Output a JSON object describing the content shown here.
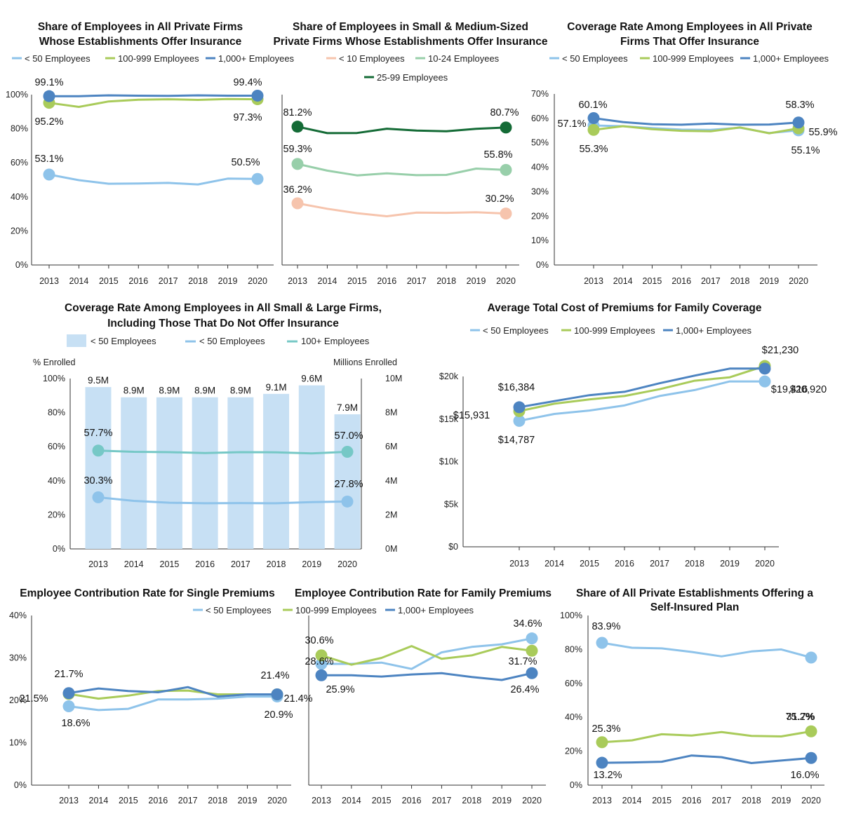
{
  "colors": {
    "lt_blue": "#8ec3ea",
    "green": "#a9cb5a",
    "dk_blue": "#4d84c1",
    "peach": "#f6c4ad",
    "mint": "#98cfaa",
    "dk_green": "#146b36",
    "bar_fill": "#c7e0f4",
    "teal": "#76c8c6",
    "axis": "#333333"
  },
  "chart_data": [
    {
      "id": "p1",
      "type": "line",
      "title": [
        "Share of Employees in All Private Firms",
        "Whose Establishments Offer Insurance"
      ],
      "x": [
        "2013",
        "2014",
        "2015",
        "2016",
        "2017",
        "2018",
        "2019",
        "2020"
      ],
      "ylim": [
        0,
        100
      ],
      "yticks": [
        "0%",
        "20%",
        "40%",
        "60%",
        "80%",
        "100%"
      ],
      "series": [
        {
          "name": "< 50 Employees",
          "color": "lt_blue",
          "values": [
            53.1,
            49.8,
            47.7,
            47.8,
            48.2,
            47.3,
            50.7,
            50.5
          ]
        },
        {
          "name": "100-999 Employees",
          "color": "green",
          "values": [
            95.2,
            92.8,
            96.0,
            97.0,
            97.3,
            96.9,
            97.4,
            97.3
          ]
        },
        {
          "name": "1,000+ Employees",
          "color": "dk_blue",
          "values": [
            99.1,
            99.1,
            99.6,
            99.4,
            99.3,
            99.6,
            99.4,
            99.4
          ]
        }
      ],
      "labels": [
        {
          "text": "99.1%"
        },
        {
          "text": "95.2%"
        },
        {
          "text": "53.1%"
        },
        {
          "text": "99.4%"
        },
        {
          "text": "97.3%"
        },
        {
          "text": "50.5%"
        }
      ]
    },
    {
      "id": "p2",
      "type": "line",
      "title": [
        "Share of Employees in Small & Medium-Sized",
        "Private Firms Whose Establishments Offer Insurance"
      ],
      "x": [
        "2013",
        "2014",
        "2015",
        "2016",
        "2017",
        "2018",
        "2019",
        "2020"
      ],
      "ylim": [
        0,
        100
      ],
      "series": [
        {
          "name": "< 10 Employees",
          "color": "peach",
          "values": [
            36.2,
            33.0,
            30.4,
            28.6,
            30.8,
            30.6,
            31.0,
            30.2
          ]
        },
        {
          "name": "10-24 Employees",
          "color": "mint",
          "values": [
            59.3,
            55.4,
            52.6,
            53.8,
            52.7,
            52.9,
            56.6,
            55.8
          ]
        },
        {
          "name": "25-99 Employees",
          "color": "dk_green",
          "values": [
            81.2,
            77.4,
            77.5,
            80.0,
            78.9,
            78.5,
            79.9,
            80.7
          ]
        }
      ],
      "labels": [
        {
          "text": "81.2%"
        },
        {
          "text": "59.3%"
        },
        {
          "text": "36.2%"
        },
        {
          "text": "80.7%"
        },
        {
          "text": "55.8%"
        },
        {
          "text": "30.2%"
        }
      ]
    },
    {
      "id": "p3",
      "type": "line",
      "title": [
        "Coverage Rate Among Employees in All Private",
        "Firms That Offer Insurance"
      ],
      "x": [
        "2013",
        "2014",
        "2015",
        "2016",
        "2017",
        "2018",
        "2019",
        "2020"
      ],
      "ylim": [
        0,
        70
      ],
      "yticks": [
        "0%",
        "10%",
        "20%",
        "30%",
        "40%",
        "50%",
        "60%",
        "70%"
      ],
      "series": [
        {
          "name": "< 50 Employees",
          "color": "lt_blue",
          "values": [
            57.1,
            56.8,
            56.0,
            55.4,
            55.3,
            56.2,
            54.0,
            55.1
          ]
        },
        {
          "name": "100-999 Employees",
          "color": "green",
          "values": [
            55.3,
            56.8,
            55.6,
            54.9,
            54.7,
            56.3,
            53.9,
            55.9
          ]
        },
        {
          "name": "1,000+ Employees",
          "color": "dk_blue",
          "values": [
            60.1,
            58.5,
            57.6,
            57.4,
            57.9,
            57.4,
            57.5,
            58.3
          ]
        }
      ],
      "labels": [
        {
          "text": "60.1%"
        },
        {
          "text": "57.1%"
        },
        {
          "text": "55.3%"
        },
        {
          "text": "58.3%"
        },
        {
          "text": "55.9%"
        },
        {
          "text": "55.1%"
        }
      ]
    },
    {
      "id": "p4",
      "type": "bar",
      "title": [
        "Coverage Rate Among Employees in All Small & Large Firms,",
        "Including Those That Do Not Offer Insurance"
      ],
      "ylabel_left": "% Enrolled",
      "ylabel_right": "Millions Enrolled",
      "x": [
        "2013",
        "2014",
        "2015",
        "2016",
        "2017",
        "2018",
        "2019",
        "2020"
      ],
      "ylim": [
        0,
        100
      ],
      "ylim_right": [
        0,
        10
      ],
      "yticks": [
        "0%",
        "20%",
        "40%",
        "60%",
        "80%",
        "100%"
      ],
      "yticks_right": [
        "0M",
        "2M",
        "4M",
        "6M",
        "8M",
        "10M"
      ],
      "bars": {
        "name": "< 50 Employees",
        "color": "bar_fill",
        "values": [
          9.5,
          8.9,
          8.9,
          8.9,
          8.9,
          9.1,
          9.6,
          7.9
        ],
        "value_labels": [
          "9.5M",
          "8.9M",
          "8.9M",
          "8.9M",
          "8.9M",
          "9.1M",
          "9.6M",
          "7.9M"
        ]
      },
      "series": [
        {
          "name": "< 50 Employees",
          "color": "lt_blue",
          "values": [
            30.3,
            28.2,
            27.1,
            26.8,
            26.9,
            26.8,
            27.5,
            27.8
          ]
        },
        {
          "name": "100+ Employees",
          "color": "teal",
          "values": [
            57.7,
            57.0,
            56.8,
            56.3,
            56.8,
            56.7,
            56.1,
            57.0
          ]
        }
      ],
      "labels": [
        {
          "text": "57.7%"
        },
        {
          "text": "30.3%"
        },
        {
          "text": "57.0%"
        },
        {
          "text": "27.8%"
        }
      ]
    },
    {
      "id": "p5",
      "type": "line",
      "title": [
        "Average Total Cost of Premiums for Family Coverage"
      ],
      "x": [
        "2013",
        "2014",
        "2015",
        "2016",
        "2017",
        "2018",
        "2019",
        "2020"
      ],
      "ylim": [
        0,
        20000
      ],
      "yticks": [
        "$0",
        "$5k",
        "$10k",
        "$15k",
        "$20k"
      ],
      "series": [
        {
          "name": "< 50 Employees",
          "color": "lt_blue",
          "values": [
            14787,
            15600,
            16000,
            16600,
            17700,
            18400,
            19416,
            19416
          ]
        },
        {
          "name": "100-999 Employees",
          "color": "green",
          "values": [
            15931,
            16800,
            17300,
            17700,
            18500,
            19500,
            19900,
            21230
          ]
        },
        {
          "name": "1,000+ Employees",
          "color": "dk_blue",
          "values": [
            16384,
            17100,
            17800,
            18200,
            19200,
            20100,
            20920,
            20920
          ]
        }
      ],
      "labels": [
        {
          "text": "$16,384"
        },
        {
          "text": "$15,931"
        },
        {
          "text": "$14,787"
        },
        {
          "text": "$21,230"
        },
        {
          "text": "$20,920"
        },
        {
          "text": "$19,416"
        }
      ]
    },
    {
      "id": "p6",
      "type": "line",
      "title": [
        "Employee Contribution Rate for Single Premiums"
      ],
      "x": [
        "2013",
        "2014",
        "2015",
        "2016",
        "2017",
        "2018",
        "2019",
        "2020"
      ],
      "ylim": [
        0,
        40
      ],
      "yticks": [
        "0%",
        "10%",
        "20%",
        "30%",
        "40%"
      ],
      "series": [
        {
          "name": "< 50 Employees",
          "color": "lt_blue",
          "values": [
            18.6,
            17.7,
            18.0,
            20.2,
            20.2,
            20.4,
            20.9,
            20.9
          ]
        },
        {
          "name": "100-999 Employees",
          "color": "green",
          "values": [
            21.5,
            20.4,
            21.1,
            22.2,
            22.3,
            21.4,
            21.4,
            21.4
          ]
        },
        {
          "name": "1,000+ Employees",
          "color": "dk_blue",
          "values": [
            21.7,
            22.8,
            22.2,
            21.9,
            23.1,
            20.9,
            21.4,
            21.4
          ]
        }
      ],
      "labels": [
        {
          "text": "21.7%"
        },
        {
          "text": "21.5%"
        },
        {
          "text": "18.6%"
        },
        {
          "text": "21.4%"
        },
        {
          "text": "21.4%"
        },
        {
          "text": "20.9%"
        }
      ]
    },
    {
      "id": "p7",
      "type": "line",
      "title": [
        "Employee Contribution Rate for Family Premiums"
      ],
      "x": [
        "2013",
        "2014",
        "2015",
        "2016",
        "2017",
        "2018",
        "2019",
        "2020"
      ],
      "ylim": [
        0,
        40
      ],
      "series": [
        {
          "name": "< 50 Employees",
          "color": "lt_blue",
          "values": [
            28.6,
            28.6,
            28.9,
            27.4,
            31.3,
            32.6,
            33.2,
            34.6
          ]
        },
        {
          "name": "100-999 Employees",
          "color": "green",
          "values": [
            30.6,
            28.4,
            30.0,
            32.8,
            29.8,
            30.6,
            32.6,
            31.7
          ]
        },
        {
          "name": "1,000+ Employees",
          "color": "dk_blue",
          "values": [
            25.9,
            25.9,
            25.6,
            26.1,
            26.4,
            25.5,
            24.8,
            26.4
          ]
        }
      ],
      "labels": [
        {
          "text": "30.6%"
        },
        {
          "text": "28.6%"
        },
        {
          "text": "25.9%"
        },
        {
          "text": "34.6%"
        },
        {
          "text": "31.7%"
        },
        {
          "text": "26.4%"
        }
      ]
    },
    {
      "id": "p8",
      "type": "line",
      "title": [
        "Share of All Private Establishments Offering a",
        "Self-Insured Plan"
      ],
      "x": [
        "2013",
        "2014",
        "2015",
        "2016",
        "2017",
        "2018",
        "2019",
        "2020"
      ],
      "ylim": [
        0,
        100
      ],
      "yticks": [
        "0%",
        "20%",
        "40%",
        "60%",
        "80%",
        "100%"
      ],
      "series": [
        {
          "name": "< 50 Employees",
          "color": "lt_blue",
          "values": [
            83.9,
            81.0,
            80.6,
            78.5,
            75.9,
            78.8,
            80.0,
            75.2
          ]
        },
        {
          "name": "100-999 Employees",
          "color": "green",
          "values": [
            25.3,
            26.4,
            30.0,
            29.2,
            31.3,
            29.0,
            28.7,
            31.7
          ]
        },
        {
          "name": "1,000+ Employees",
          "color": "dk_blue",
          "values": [
            13.2,
            13.4,
            13.8,
            17.5,
            16.5,
            13.0,
            14.5,
            16.0
          ]
        }
      ],
      "labels": [
        {
          "text": "83.9%"
        },
        {
          "text": "25.3%"
        },
        {
          "text": "13.2%"
        },
        {
          "text": "75.2%"
        },
        {
          "text": "31.7%"
        },
        {
          "text": "16.0%"
        }
      ]
    }
  ],
  "legends": {
    "row1_left": [
      "< 50 Employees",
      "100-999 Employees",
      "1,000+ Employees"
    ],
    "row1_mid": [
      "< 10 Employees",
      "10-24 Employees",
      "25-99 Employees"
    ],
    "row1_right": [
      "< 50 Employees",
      "100-999 Employees",
      "1,000+ Employees"
    ],
    "row2_left": [
      "< 50 Employees",
      "< 50 Employees",
      "100+ Employees"
    ],
    "row2_right": [
      "< 50 Employees",
      "100-999 Employees",
      "1,000+ Employees"
    ],
    "row3": [
      "< 50 Employees",
      "100-999 Employees",
      "1,000+ Employees"
    ]
  }
}
